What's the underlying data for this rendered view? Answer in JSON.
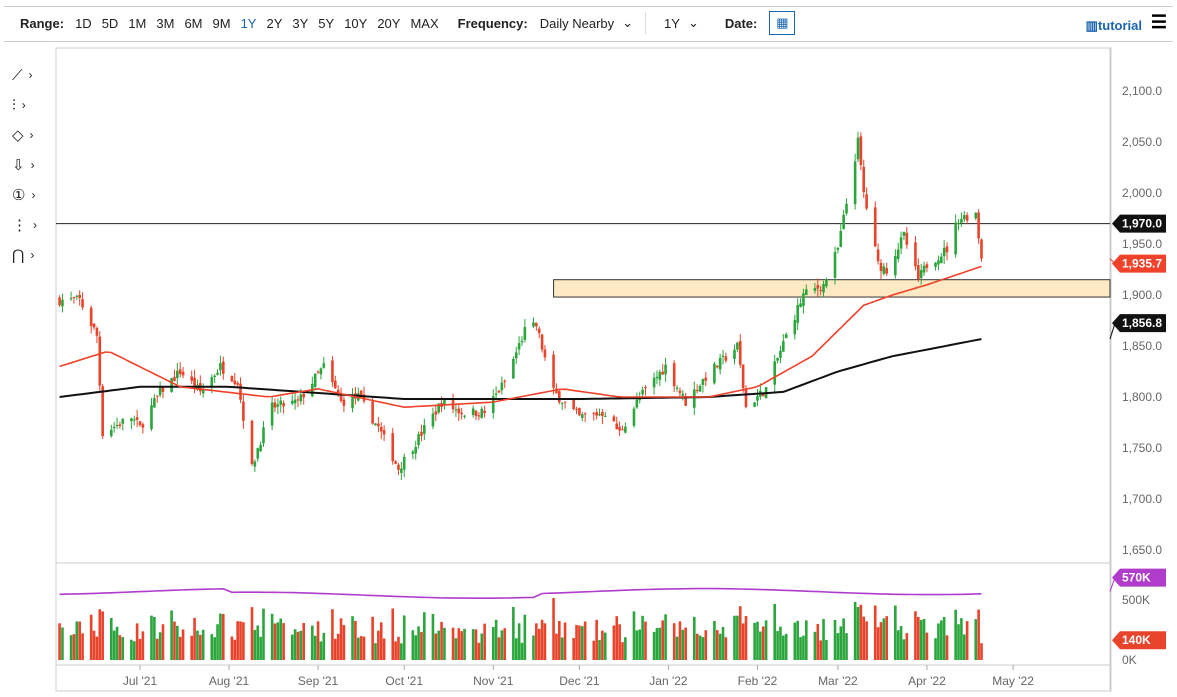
{
  "toolbar": {
    "range_label": "Range:",
    "ranges": [
      "1D",
      "5D",
      "1M",
      "3M",
      "6M",
      "9M",
      "1Y",
      "2Y",
      "3Y",
      "5Y",
      "10Y",
      "20Y",
      "MAX"
    ],
    "active_range": "1Y",
    "frequency_label": "Frequency:",
    "frequency_value": "Daily Nearby",
    "period_value": "1Y",
    "date_label": "Date:",
    "tutorial_label": "tutorial"
  },
  "tools": [
    "line-tool-icon",
    "fib-tool-icon",
    "shape-tool-icon",
    "arrow-down-tool-icon",
    "number-tool-icon",
    "pattern-tool-icon",
    "magnet-icon"
  ],
  "tool_glyphs": [
    "⟋",
    "⫶",
    "◇",
    "⇩",
    "①",
    "⋮",
    "⋂"
  ],
  "chart_data": [
    {
      "type": "candlestick",
      "ylim": [
        1650,
        2100
      ],
      "yticks": [
        "2,100.0",
        "2,050.0",
        "2,000.0",
        "1,950.0",
        "1,900.0",
        "1,850.0",
        "1,800.0",
        "1,750.0",
        "1,700.0",
        "1,650.0"
      ],
      "ytick_values": [
        2100,
        2050,
        2000,
        1950,
        1900,
        1850,
        1800,
        1750,
        1700,
        1650
      ],
      "xticks": [
        "Jul '21",
        "Aug '21",
        "Sep '21",
        "Oct '21",
        "Nov '21",
        "Dec '21",
        "Jan '22",
        "Feb '22",
        "Mar '22",
        "Apr '22",
        "May '22"
      ],
      "xtick_dates": [
        "2021-07-01",
        "2021-08-01",
        "2021-09-01",
        "2021-10-01",
        "2021-11-01",
        "2021-12-01",
        "2022-01-01",
        "2022-02-01",
        "2022-03-01",
        "2022-04-01",
        "2022-05-01"
      ],
      "close_path": [
        [
          "2021-06-03",
          1895
        ],
        [
          "2021-06-10",
          1895
        ],
        [
          "2021-06-16",
          1860
        ],
        [
          "2021-06-18",
          1765
        ],
        [
          "2021-06-28",
          1780
        ],
        [
          "2021-07-01",
          1770
        ],
        [
          "2021-07-08",
          1805
        ],
        [
          "2021-07-15",
          1825
        ],
        [
          "2021-07-22",
          1805
        ],
        [
          "2021-07-29",
          1830
        ],
        [
          "2021-08-04",
          1815
        ],
        [
          "2021-08-09",
          1730
        ],
        [
          "2021-08-11",
          1750
        ],
        [
          "2021-08-16",
          1790
        ],
        [
          "2021-08-25",
          1795
        ],
        [
          "2021-09-03",
          1830
        ],
        [
          "2021-09-09",
          1795
        ],
        [
          "2021-09-15",
          1800
        ],
        [
          "2021-09-22",
          1770
        ],
        [
          "2021-09-29",
          1730
        ],
        [
          "2021-10-06",
          1760
        ],
        [
          "2021-10-14",
          1795
        ],
        [
          "2021-10-21",
          1785
        ],
        [
          "2021-10-29",
          1785
        ],
        [
          "2021-11-05",
          1815
        ],
        [
          "2021-11-12",
          1865
        ],
        [
          "2021-11-16",
          1870
        ],
        [
          "2021-11-22",
          1805
        ],
        [
          "2021-12-01",
          1780
        ],
        [
          "2021-12-10",
          1785
        ],
        [
          "2021-12-15",
          1765
        ],
        [
          "2021-12-22",
          1800
        ],
        [
          "2021-12-31",
          1830
        ],
        [
          "2022-01-07",
          1795
        ],
        [
          "2022-01-14",
          1820
        ],
        [
          "2022-01-25",
          1850
        ],
        [
          "2022-01-28",
          1790
        ],
        [
          "2022-02-04",
          1808
        ],
        [
          "2022-02-11",
          1860
        ],
        [
          "2022-02-17",
          1900
        ],
        [
          "2022-02-24",
          1910
        ],
        [
          "2022-03-01",
          1945
        ],
        [
          "2022-03-08",
          2050
        ],
        [
          "2022-03-10",
          2000
        ],
        [
          "2022-03-15",
          1930
        ],
        [
          "2022-03-18",
          1925
        ],
        [
          "2022-03-24",
          1958
        ],
        [
          "2022-03-29",
          1915
        ],
        [
          "2022-04-01",
          1930
        ],
        [
          "2022-04-08",
          1945
        ],
        [
          "2022-04-12",
          1975
        ],
        [
          "2022-04-18",
          1980
        ],
        [
          "2022-04-20",
          1935.7
        ]
      ],
      "ma_50": [
        [
          "2021-06-03",
          1830
        ],
        [
          "2021-06-20",
          1845
        ],
        [
          "2021-07-15",
          1810
        ],
        [
          "2021-08-15",
          1800
        ],
        [
          "2021-09-01",
          1808
        ],
        [
          "2021-10-01",
          1790
        ],
        [
          "2021-11-01",
          1795
        ],
        [
          "2021-11-25",
          1808
        ],
        [
          "2021-12-15",
          1800
        ],
        [
          "2022-01-15",
          1800
        ],
        [
          "2022-02-01",
          1810
        ],
        [
          "2022-02-20",
          1840
        ],
        [
          "2022-03-10",
          1890
        ],
        [
          "2022-03-20",
          1900
        ],
        [
          "2022-04-01",
          1910
        ],
        [
          "2022-04-20",
          1928
        ]
      ],
      "ma_200": [
        [
          "2021-06-03",
          1800
        ],
        [
          "2021-07-01",
          1810
        ],
        [
          "2021-08-01",
          1810
        ],
        [
          "2021-10-01",
          1798
        ],
        [
          "2021-12-01",
          1798
        ],
        [
          "2022-01-15",
          1800
        ],
        [
          "2022-02-10",
          1805
        ],
        [
          "2022-03-01",
          1825
        ],
        [
          "2022-03-20",
          1840
        ],
        [
          "2022-04-20",
          1856.8
        ]
      ],
      "horizontal_line": 1970,
      "horizontal_line_label": "1,970.0",
      "zone": {
        "from": "2021-11-22",
        "low": 1898,
        "high": 1915,
        "color": "#fde9c4"
      },
      "last_price_label": "1,935.7",
      "ma_200_label": "1,856.8",
      "colors": {
        "up": "#2aa63c",
        "down": "#e8432b",
        "ma_50": "#f0412a",
        "ma_200": "#111111",
        "zone_border": "#333333"
      }
    },
    {
      "type": "volume",
      "yticks": [
        "500K",
        "0K"
      ],
      "ytick_values": [
        500,
        0
      ],
      "volume_ma_label": "570K",
      "last_volume_label": "140K",
      "volume_ma": 570,
      "last_volume": 140,
      "colors": {
        "volume_ma": "#b03ccc",
        "up": "#2aa63c",
        "down": "#e8432b"
      }
    }
  ]
}
